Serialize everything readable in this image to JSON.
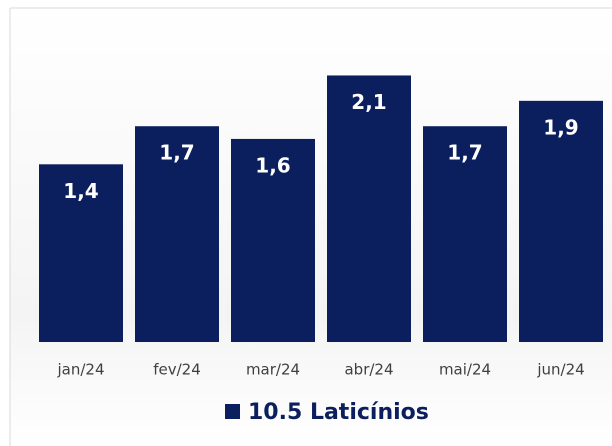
{
  "chart_data": {
    "type": "bar",
    "categories": [
      "jan/24",
      "fev/24",
      "mar/24",
      "abr/24",
      "mai/24",
      "jun/24"
    ],
    "series": [
      {
        "name": "10.5 Laticínios",
        "color": "#0b1f5e",
        "values": [
          1.4,
          1.7,
          1.6,
          2.1,
          1.7,
          1.9
        ],
        "value_labels": [
          "1,4",
          "1,7",
          "1,6",
          "2,1",
          "1,7",
          "1,9"
        ]
      }
    ],
    "ylim": [
      0,
      2.6
    ]
  }
}
